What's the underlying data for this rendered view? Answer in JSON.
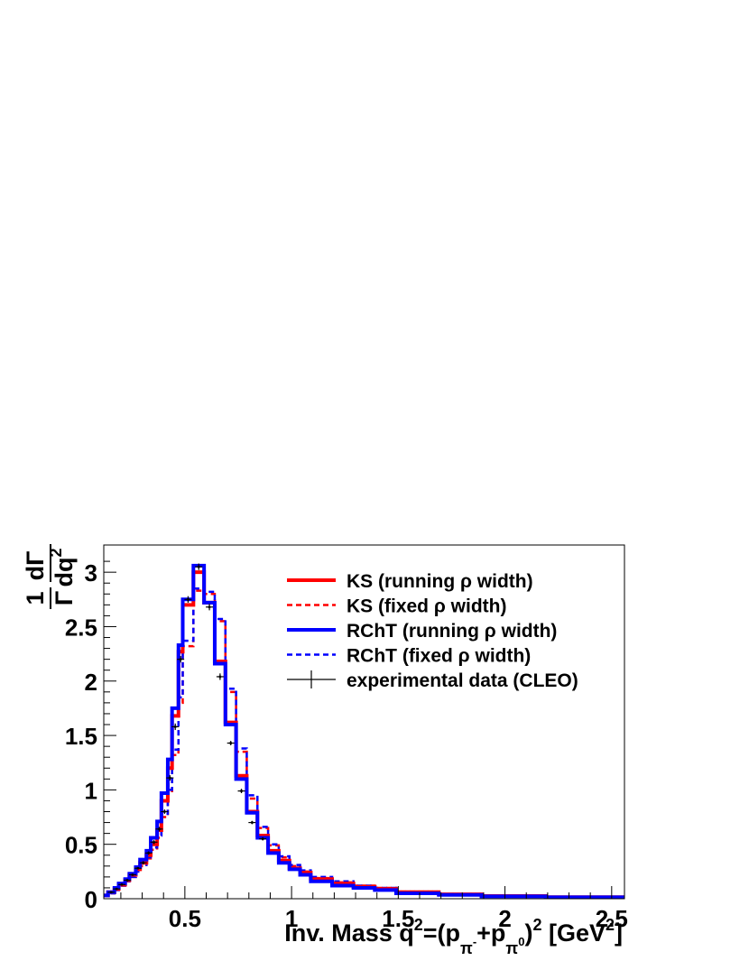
{
  "chart_data": {
    "type": "line",
    "xlabel": "Inv. Mass q²=(pπ⁻+pπ⁰)² [GeV²]",
    "xlabel_parts": {
      "main": "Inv. Mass q",
      "sup1": "2",
      "eq": "=(p",
      "sub1": "π",
      "subsup1": "-",
      "plus": "+p",
      "sub2": "π",
      "subsup2": "0",
      "close": ")",
      "sup2": "2",
      "unit": " [GeV",
      "unit_sup": "2",
      "unit_close": "]"
    },
    "ylabel_parts": {
      "num_1": "1",
      "den_gamma": "Γ",
      "num_d": "dΓ",
      "den_dq": "dq",
      "den_sup": "2"
    },
    "xlim": [
      0.12,
      2.56
    ],
    "ylim": [
      0,
      3.25
    ],
    "x_ticks": [
      {
        "v": 0.5,
        "label": "0.5"
      },
      {
        "v": 1.0,
        "label": "1"
      },
      {
        "v": 1.5,
        "label": "1.5"
      },
      {
        "v": 2.0,
        "label": "2"
      },
      {
        "v": 2.5,
        "label": "2.5"
      }
    ],
    "y_ticks": [
      {
        "v": 0,
        "label": "0"
      },
      {
        "v": 0.5,
        "label": "0.5"
      },
      {
        "v": 1.0,
        "label": "1"
      },
      {
        "v": 1.5,
        "label": "1.5"
      },
      {
        "v": 2.0,
        "label": "2"
      },
      {
        "v": 2.5,
        "label": "2.5"
      },
      {
        "v": 3.0,
        "label": "3"
      }
    ],
    "legend_position": "top-right",
    "series": [
      {
        "name": "KS (running ρ width)",
        "color": "#ff0000",
        "style": "solid",
        "bins": [
          [
            0.12,
            0.14,
            0.03
          ],
          [
            0.14,
            0.17,
            0.06
          ],
          [
            0.17,
            0.19,
            0.09
          ],
          [
            0.19,
            0.22,
            0.13
          ],
          [
            0.22,
            0.24,
            0.17
          ],
          [
            0.24,
            0.27,
            0.22
          ],
          [
            0.27,
            0.29,
            0.27
          ],
          [
            0.29,
            0.32,
            0.33
          ],
          [
            0.32,
            0.34,
            0.4
          ],
          [
            0.34,
            0.37,
            0.5
          ],
          [
            0.37,
            0.39,
            0.63
          ],
          [
            0.39,
            0.42,
            0.9
          ],
          [
            0.42,
            0.44,
            1.2
          ],
          [
            0.44,
            0.47,
            1.68
          ],
          [
            0.47,
            0.49,
            2.27
          ],
          [
            0.49,
            0.54,
            2.7
          ],
          [
            0.54,
            0.59,
            3.0
          ],
          [
            0.59,
            0.64,
            2.72
          ],
          [
            0.64,
            0.69,
            2.18
          ],
          [
            0.69,
            0.74,
            1.62
          ],
          [
            0.74,
            0.79,
            1.13
          ],
          [
            0.79,
            0.84,
            0.8
          ],
          [
            0.84,
            0.89,
            0.58
          ],
          [
            0.89,
            0.94,
            0.44
          ],
          [
            0.94,
            0.99,
            0.35
          ],
          [
            0.99,
            1.04,
            0.28
          ],
          [
            1.04,
            1.09,
            0.24
          ],
          [
            1.09,
            1.19,
            0.18
          ],
          [
            1.19,
            1.29,
            0.14
          ],
          [
            1.29,
            1.39,
            0.11
          ],
          [
            1.39,
            1.49,
            0.09
          ],
          [
            1.49,
            1.69,
            0.06
          ],
          [
            1.69,
            1.89,
            0.04
          ],
          [
            1.89,
            2.19,
            0.025
          ],
          [
            2.19,
            2.56,
            0.015
          ]
        ]
      },
      {
        "name": "KS (fixed ρ width)",
        "color": "#ff0000",
        "style": "dashed",
        "bins": [
          [
            0.12,
            0.14,
            0.03
          ],
          [
            0.14,
            0.17,
            0.05
          ],
          [
            0.17,
            0.19,
            0.08
          ],
          [
            0.19,
            0.22,
            0.12
          ],
          [
            0.22,
            0.24,
            0.16
          ],
          [
            0.24,
            0.27,
            0.2
          ],
          [
            0.27,
            0.29,
            0.25
          ],
          [
            0.29,
            0.32,
            0.3
          ],
          [
            0.32,
            0.34,
            0.37
          ],
          [
            0.34,
            0.37,
            0.45
          ],
          [
            0.37,
            0.39,
            0.56
          ],
          [
            0.39,
            0.42,
            0.75
          ],
          [
            0.42,
            0.44,
            0.97
          ],
          [
            0.44,
            0.47,
            1.32
          ],
          [
            0.47,
            0.49,
            1.8
          ],
          [
            0.49,
            0.54,
            2.32
          ],
          [
            0.54,
            0.59,
            2.83
          ],
          [
            0.59,
            0.64,
            2.8
          ],
          [
            0.64,
            0.69,
            2.55
          ],
          [
            0.69,
            0.74,
            1.9
          ],
          [
            0.74,
            0.79,
            1.35
          ],
          [
            0.79,
            0.84,
            0.92
          ],
          [
            0.84,
            0.89,
            0.65
          ],
          [
            0.89,
            0.94,
            0.49
          ],
          [
            0.94,
            0.99,
            0.38
          ],
          [
            0.99,
            1.04,
            0.3
          ],
          [
            1.04,
            1.09,
            0.25
          ],
          [
            1.09,
            1.19,
            0.19
          ],
          [
            1.19,
            1.29,
            0.15
          ],
          [
            1.29,
            1.39,
            0.12
          ],
          [
            1.39,
            1.49,
            0.1
          ],
          [
            1.49,
            1.69,
            0.065
          ],
          [
            1.69,
            1.89,
            0.045
          ],
          [
            1.89,
            2.19,
            0.028
          ],
          [
            2.19,
            2.56,
            0.017
          ]
        ]
      },
      {
        "name": "RChT (running ρ width)",
        "color": "#0000ff",
        "style": "solid",
        "bins": [
          [
            0.12,
            0.14,
            0.03
          ],
          [
            0.14,
            0.17,
            0.06
          ],
          [
            0.17,
            0.19,
            0.1
          ],
          [
            0.19,
            0.22,
            0.14
          ],
          [
            0.22,
            0.24,
            0.18
          ],
          [
            0.24,
            0.27,
            0.23
          ],
          [
            0.27,
            0.29,
            0.29
          ],
          [
            0.29,
            0.32,
            0.36
          ],
          [
            0.32,
            0.34,
            0.44
          ],
          [
            0.34,
            0.37,
            0.56
          ],
          [
            0.37,
            0.39,
            0.71
          ],
          [
            0.39,
            0.42,
            0.97
          ],
          [
            0.42,
            0.44,
            1.28
          ],
          [
            0.44,
            0.47,
            1.75
          ],
          [
            0.47,
            0.49,
            2.33
          ],
          [
            0.49,
            0.54,
            2.75
          ],
          [
            0.54,
            0.59,
            3.06
          ],
          [
            0.59,
            0.64,
            2.72
          ],
          [
            0.64,
            0.69,
            2.16
          ],
          [
            0.69,
            0.74,
            1.6
          ],
          [
            0.74,
            0.79,
            1.1
          ],
          [
            0.79,
            0.84,
            0.79
          ],
          [
            0.84,
            0.89,
            0.56
          ],
          [
            0.89,
            0.94,
            0.42
          ],
          [
            0.94,
            0.99,
            0.33
          ],
          [
            0.99,
            1.04,
            0.27
          ],
          [
            1.04,
            1.09,
            0.22
          ],
          [
            1.09,
            1.19,
            0.16
          ],
          [
            1.19,
            1.29,
            0.12
          ],
          [
            1.29,
            1.39,
            0.1
          ],
          [
            1.39,
            1.49,
            0.08
          ],
          [
            1.49,
            1.69,
            0.05
          ],
          [
            1.69,
            1.89,
            0.035
          ],
          [
            1.89,
            2.19,
            0.022
          ],
          [
            2.19,
            2.56,
            0.013
          ]
        ]
      },
      {
        "name": "RChT (fixed ρ width)",
        "color": "#0000ff",
        "style": "dashed",
        "bins": [
          [
            0.12,
            0.14,
            0.03
          ],
          [
            0.14,
            0.17,
            0.05
          ],
          [
            0.17,
            0.19,
            0.08
          ],
          [
            0.19,
            0.22,
            0.12
          ],
          [
            0.22,
            0.24,
            0.16
          ],
          [
            0.24,
            0.27,
            0.2
          ],
          [
            0.27,
            0.29,
            0.25
          ],
          [
            0.29,
            0.32,
            0.31
          ],
          [
            0.32,
            0.34,
            0.38
          ],
          [
            0.34,
            0.37,
            0.47
          ],
          [
            0.37,
            0.39,
            0.58
          ],
          [
            0.39,
            0.42,
            0.78
          ],
          [
            0.42,
            0.44,
            1.0
          ],
          [
            0.44,
            0.47,
            1.37
          ],
          [
            0.47,
            0.49,
            1.85
          ],
          [
            0.49,
            0.54,
            2.37
          ],
          [
            0.54,
            0.59,
            2.85
          ],
          [
            0.59,
            0.64,
            2.82
          ],
          [
            0.64,
            0.69,
            2.57
          ],
          [
            0.69,
            0.74,
            1.93
          ],
          [
            0.74,
            0.79,
            1.38
          ],
          [
            0.79,
            0.84,
            0.95
          ],
          [
            0.84,
            0.89,
            0.66
          ],
          [
            0.89,
            0.94,
            0.5
          ],
          [
            0.94,
            0.99,
            0.39
          ],
          [
            0.99,
            1.04,
            0.31
          ],
          [
            1.04,
            1.09,
            0.26
          ],
          [
            1.09,
            1.19,
            0.2
          ],
          [
            1.19,
            1.29,
            0.16
          ],
          [
            1.29,
            1.39,
            0.12
          ],
          [
            1.39,
            1.49,
            0.1
          ],
          [
            1.49,
            1.69,
            0.065
          ],
          [
            1.69,
            1.89,
            0.045
          ],
          [
            1.89,
            2.19,
            0.028
          ],
          [
            2.19,
            2.56,
            0.017
          ]
        ]
      }
    ],
    "data_series": {
      "name": "experimental data (CLEO)",
      "color": "#000000",
      "points": [
        [
          0.155,
          0.06,
          0.01
        ],
        [
          0.18,
          0.09,
          0.01
        ],
        [
          0.205,
          0.13,
          0.01
        ],
        [
          0.23,
          0.17,
          0.01
        ],
        [
          0.255,
          0.22,
          0.01
        ],
        [
          0.28,
          0.28,
          0.01
        ],
        [
          0.305,
          0.33,
          0.015
        ],
        [
          0.33,
          0.42,
          0.015
        ],
        [
          0.355,
          0.52,
          0.02
        ],
        [
          0.38,
          0.64,
          0.02
        ],
        [
          0.405,
          0.8,
          0.02
        ],
        [
          0.43,
          1.11,
          0.025
        ],
        [
          0.455,
          1.58,
          0.03
        ],
        [
          0.48,
          2.2,
          0.03
        ],
        [
          0.515,
          2.75,
          0.03
        ],
        [
          0.565,
          3.05,
          0.03
        ],
        [
          0.615,
          2.68,
          0.03
        ],
        [
          0.665,
          2.04,
          0.03
        ],
        [
          0.715,
          1.43,
          0.02
        ],
        [
          0.765,
          0.99,
          0.02
        ],
        [
          0.815,
          0.7,
          0.015
        ],
        [
          0.865,
          0.55,
          0.015
        ]
      ]
    }
  }
}
